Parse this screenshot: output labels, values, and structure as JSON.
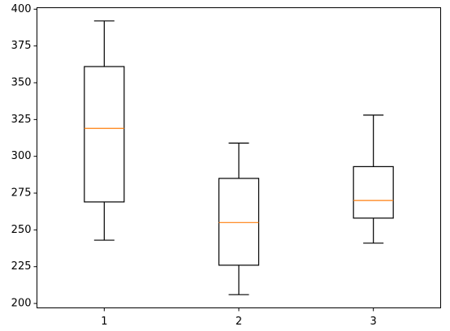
{
  "chart_data": {
    "type": "boxplot",
    "categories": [
      "1",
      "2",
      "3"
    ],
    "y_ticks": [
      "200",
      "225",
      "250",
      "275",
      "300",
      "325",
      "350",
      "375",
      "400"
    ],
    "ylim": [
      197,
      401
    ],
    "xlim": [
      0.5,
      3.5
    ],
    "grid": false,
    "boxes": [
      {
        "category": "1",
        "whisker_low": 243,
        "q1": 269,
        "median": 319,
        "q3": 361,
        "whisker_high": 392
      },
      {
        "category": "2",
        "whisker_low": 206,
        "q1": 226,
        "median": 255,
        "q3": 285,
        "whisker_high": 309
      },
      {
        "category": "3",
        "whisker_low": 241,
        "q1": 258,
        "median": 270,
        "q3": 293,
        "whisker_high": 328
      }
    ],
    "colors": {
      "box": "#000000",
      "median": "#ff7f0e"
    }
  }
}
